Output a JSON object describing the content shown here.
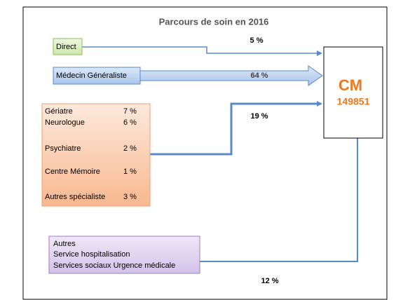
{
  "title": "Parcours de soin en 2016",
  "nodes": [
    {
      "label": "Direct"
    },
    {
      "label": "Médecin Généraliste"
    },
    {
      "rows": [
        [
          "Gériatre",
          "7 %"
        ],
        [
          "Neurologue",
          "6 %"
        ],
        [
          "Psychiatre",
          "2 %"
        ],
        [
          "Centre Mémoire",
          "1 %"
        ],
        [
          "Autres spécialiste",
          "3 %"
        ]
      ]
    },
    {
      "lines": [
        "Autres",
        "Service hospitalisation",
        "Services sociaux Urgence médicale"
      ]
    },
    {
      "label": "CM",
      "value": "149851"
    }
  ],
  "edges": [
    {
      "label": "5 %"
    },
    {
      "label": "64 %"
    },
    {
      "label": "19 %"
    },
    {
      "label": "12 %"
    }
  ]
}
